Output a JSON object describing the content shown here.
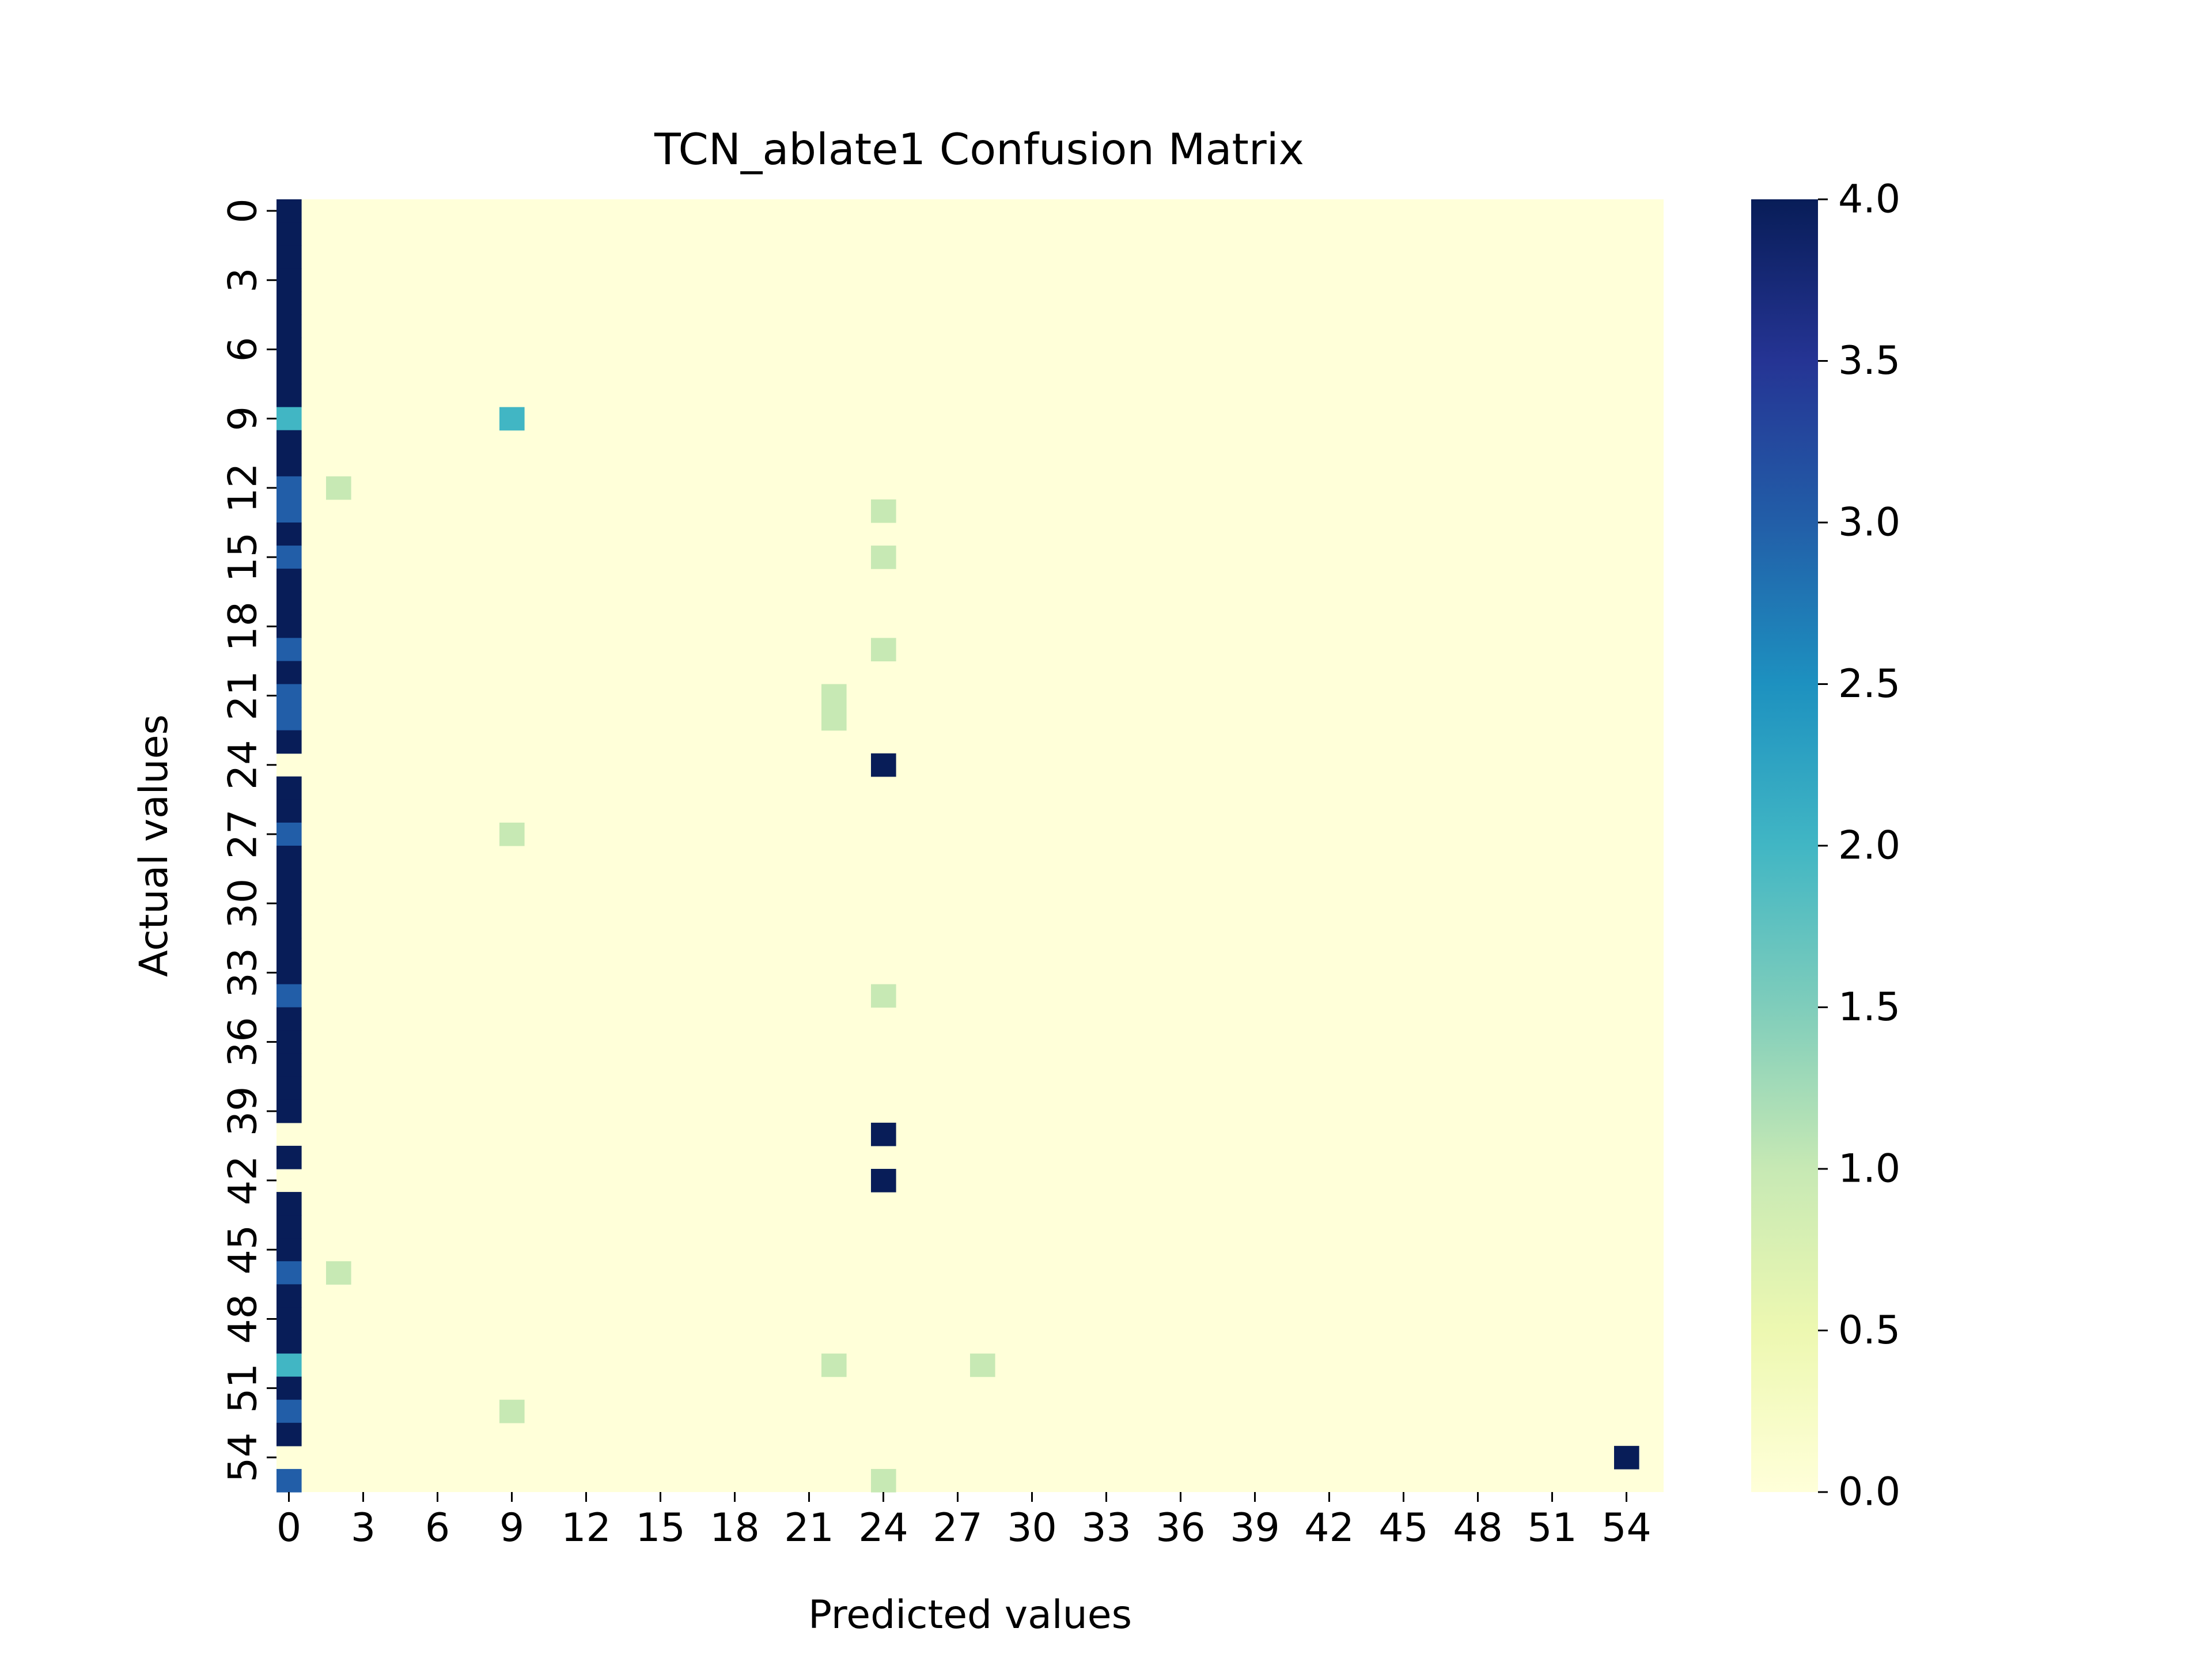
{
  "chart_data": {
    "type": "heatmap",
    "title": "TCN_ablate1 Confusion Matrix",
    "xlabel": "Predicted values",
    "ylabel": "Actual values",
    "n": 56,
    "x_tick_labels": [
      "0",
      "3",
      "6",
      "9",
      "12",
      "15",
      "18",
      "21",
      "24",
      "27",
      "30",
      "33",
      "36",
      "39",
      "42",
      "45",
      "48",
      "51",
      "54"
    ],
    "y_tick_labels": [
      "0",
      "3",
      "6",
      "9",
      "12",
      "15",
      "18",
      "21",
      "24",
      "27",
      "30",
      "33",
      "36",
      "39",
      "42",
      "45",
      "48",
      "51",
      "54"
    ],
    "colorbar": {
      "min": 0,
      "max": 4,
      "tick_labels": [
        "0.0",
        "0.5",
        "1.0",
        "1.5",
        "2.0",
        "2.5",
        "3.0",
        "3.5",
        "4.0"
      ],
      "colormap": "YlGnBu"
    },
    "cells": [
      [
        0,
        0,
        4
      ],
      [
        1,
        0,
        4
      ],
      [
        2,
        0,
        4
      ],
      [
        3,
        0,
        4
      ],
      [
        4,
        0,
        4
      ],
      [
        5,
        0,
        4
      ],
      [
        6,
        0,
        4
      ],
      [
        7,
        0,
        4
      ],
      [
        8,
        0,
        4
      ],
      [
        9,
        0,
        2
      ],
      [
        9,
        9,
        2
      ],
      [
        10,
        0,
        4
      ],
      [
        11,
        0,
        4
      ],
      [
        12,
        0,
        3
      ],
      [
        12,
        2,
        1
      ],
      [
        13,
        0,
        3
      ],
      [
        13,
        24,
        1
      ],
      [
        14,
        0,
        4
      ],
      [
        15,
        0,
        3
      ],
      [
        15,
        24,
        1
      ],
      [
        16,
        0,
        4
      ],
      [
        17,
        0,
        4
      ],
      [
        18,
        0,
        4
      ],
      [
        19,
        0,
        3
      ],
      [
        19,
        24,
        1
      ],
      [
        20,
        0,
        4
      ],
      [
        21,
        0,
        3
      ],
      [
        21,
        22,
        1
      ],
      [
        22,
        0,
        3
      ],
      [
        22,
        22,
        1
      ],
      [
        23,
        0,
        4
      ],
      [
        24,
        24,
        4
      ],
      [
        25,
        0,
        4
      ],
      [
        26,
        0,
        4
      ],
      [
        27,
        0,
        3
      ],
      [
        27,
        9,
        1
      ],
      [
        28,
        0,
        4
      ],
      [
        29,
        0,
        4
      ],
      [
        30,
        0,
        4
      ],
      [
        31,
        0,
        4
      ],
      [
        32,
        0,
        4
      ],
      [
        33,
        0,
        4
      ],
      [
        34,
        0,
        3
      ],
      [
        34,
        24,
        1
      ],
      [
        35,
        0,
        4
      ],
      [
        36,
        0,
        4
      ],
      [
        37,
        0,
        4
      ],
      [
        38,
        0,
        4
      ],
      [
        39,
        0,
        4
      ],
      [
        40,
        24,
        4
      ],
      [
        41,
        0,
        4
      ],
      [
        42,
        24,
        4
      ],
      [
        43,
        0,
        4
      ],
      [
        44,
        0,
        4
      ],
      [
        45,
        0,
        4
      ],
      [
        46,
        0,
        3
      ],
      [
        46,
        2,
        1
      ],
      [
        47,
        0,
        4
      ],
      [
        48,
        0,
        4
      ],
      [
        49,
        0,
        4
      ],
      [
        50,
        0,
        2
      ],
      [
        50,
        22,
        1
      ],
      [
        50,
        28,
        1
      ],
      [
        51,
        0,
        4
      ],
      [
        52,
        0,
        3
      ],
      [
        52,
        9,
        1
      ],
      [
        53,
        0,
        4
      ],
      [
        54,
        54,
        4
      ],
      [
        55,
        0,
        3
      ],
      [
        55,
        24,
        1
      ]
    ]
  }
}
